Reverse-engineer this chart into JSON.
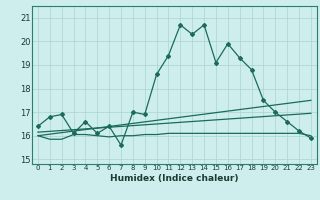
{
  "xlabel": "Humidex (Indice chaleur)",
  "bg_color": "#ceeeed",
  "grid_color": "#aad4d0",
  "line_color": "#1a6b5a",
  "xlim": [
    -0.5,
    23.5
  ],
  "ylim": [
    14.8,
    21.5
  ],
  "yticks": [
    15,
    16,
    17,
    18,
    19,
    20,
    21
  ],
  "xticks": [
    0,
    1,
    2,
    3,
    4,
    5,
    6,
    7,
    8,
    9,
    10,
    11,
    12,
    13,
    14,
    15,
    16,
    17,
    18,
    19,
    20,
    21,
    22,
    23
  ],
  "series1_x": [
    0,
    1,
    2,
    3,
    4,
    5,
    6,
    7,
    8,
    9,
    10,
    11,
    12,
    13,
    14,
    15,
    16,
    17,
    18,
    19,
    20,
    21,
    22,
    23
  ],
  "series1_y": [
    16.4,
    16.8,
    16.9,
    16.1,
    16.6,
    16.1,
    16.4,
    15.6,
    17.0,
    16.9,
    18.6,
    19.4,
    20.7,
    20.3,
    20.7,
    19.1,
    19.9,
    19.3,
    18.8,
    17.5,
    17.0,
    16.6,
    16.2,
    15.9
  ],
  "series2_x": [
    0,
    1,
    2,
    3,
    4,
    5,
    6,
    7,
    8,
    9,
    10,
    11,
    12,
    13,
    14,
    15,
    16,
    17,
    18,
    19,
    20,
    21,
    22,
    23
  ],
  "series2_y": [
    16.0,
    15.85,
    15.85,
    16.05,
    16.05,
    16.0,
    15.95,
    16.0,
    16.0,
    16.05,
    16.05,
    16.1,
    16.1,
    16.1,
    16.1,
    16.1,
    16.1,
    16.1,
    16.1,
    16.1,
    16.1,
    16.1,
    16.1,
    16.0
  ],
  "series3_x": [
    0,
    23
  ],
  "series3_y": [
    16.0,
    17.5
  ],
  "series4_x": [
    0,
    23
  ],
  "series4_y": [
    16.15,
    16.95
  ]
}
